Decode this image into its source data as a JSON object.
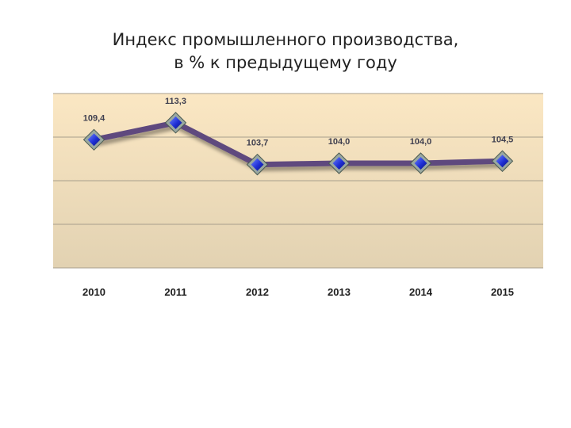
{
  "chart_data": {
    "type": "line",
    "title_lines": [
      "Индекс промышленного производства,",
      "в % к предыдущему году"
    ],
    "categories": [
      "2010",
      "2011",
      "2012",
      "2013",
      "2014",
      "2015"
    ],
    "values": [
      109.4,
      113.3,
      103.7,
      104.0,
      104.0,
      104.5
    ],
    "data_labels": [
      "109,4",
      "113,3",
      "103,7",
      "104,0",
      "104,0",
      "104,5"
    ],
    "xlabel": "",
    "ylabel": "",
    "ylim": [
      80,
      120
    ],
    "grid": true,
    "legend": "none",
    "colors": {
      "line": "#5e4a7e",
      "marker_fill": "#1f2fd6",
      "marker_border": "#9aa8a0",
      "plot_bg_top": "#fbe7c3",
      "plot_bg_bottom": "#e2d2b2",
      "gridline": "#a89f8c"
    }
  }
}
